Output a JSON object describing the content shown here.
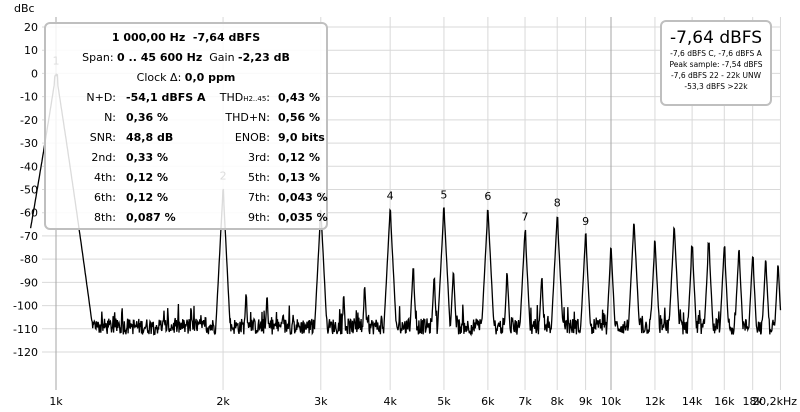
{
  "chart_data": {
    "type": "line",
    "title": "",
    "ylabel": "dBc",
    "xlabel": "",
    "x_scale": "log",
    "xlim_hz": [
      900,
      20200
    ],
    "ylim": [
      -130,
      25
    ],
    "y_ticks": [
      20,
      10,
      0,
      -10,
      -20,
      -30,
      -40,
      -50,
      -60,
      -70,
      -80,
      -90,
      -100,
      -110,
      -120
    ],
    "y_tick_labels": [
      "20",
      "10",
      "0",
      "-10",
      "-20",
      "-30",
      "-40",
      "-50",
      "-60",
      "-70",
      "-80",
      "-90",
      "-100",
      "-110",
      "-120"
    ],
    "x_ticks_hz": [
      1000,
      2000,
      3000,
      4000,
      5000,
      6000,
      7000,
      8000,
      9000,
      10000,
      12000,
      14000,
      16000,
      18000,
      20200
    ],
    "x_tick_labels": [
      "1k",
      "2k",
      "3k",
      "4k",
      "5k",
      "6k",
      "7k",
      "8k",
      "9k",
      "10k",
      "12k",
      "14k",
      "16k",
      "18k",
      "20,2kHz"
    ],
    "major_gridlines_hz": [
      1000,
      10000
    ],
    "grid": true,
    "noise_floor_dbc": -109,
    "harmonic_labels": [
      "1",
      "2",
      "3",
      "4",
      "5",
      "6",
      "7",
      "8",
      "9"
    ],
    "harmonics": [
      {
        "label": "1",
        "freq_hz": 1000,
        "dbc": 0
      },
      {
        "label": "2",
        "freq_hz": 2000,
        "dbc": -49.6
      },
      {
        "label": "3",
        "freq_hz": 3000,
        "dbc": -58.4
      },
      {
        "label": "4",
        "freq_hz": 4000,
        "dbc": -58.2
      },
      {
        "label": "5",
        "freq_hz": 5000,
        "dbc": -57.7
      },
      {
        "label": "6",
        "freq_hz": 6000,
        "dbc": -58.4
      },
      {
        "label": "7",
        "freq_hz": 7000,
        "dbc": -67.3
      },
      {
        "label": "8",
        "freq_hz": 8000,
        "dbc": -61.2
      },
      {
        "label": "9",
        "freq_hz": 9000,
        "dbc": -69.1
      }
    ],
    "spurs": [
      {
        "freq_hz": 1100,
        "dbc": -94
      },
      {
        "freq_hz": 2200,
        "dbc": -95
      },
      {
        "freq_hz": 2400,
        "dbc": -96
      },
      {
        "freq_hz": 3300,
        "dbc": -96
      },
      {
        "freq_hz": 3600,
        "dbc": -92
      },
      {
        "freq_hz": 4400,
        "dbc": -84
      },
      {
        "freq_hz": 4800,
        "dbc": -88
      },
      {
        "freq_hz": 5200,
        "dbc": -85
      },
      {
        "freq_hz": 6500,
        "dbc": -86
      },
      {
        "freq_hz": 7500,
        "dbc": -88
      },
      {
        "freq_hz": 10000,
        "dbc": -75
      },
      {
        "freq_hz": 11000,
        "dbc": -64
      },
      {
        "freq_hz": 12000,
        "dbc": -72
      },
      {
        "freq_hz": 13000,
        "dbc": -66
      },
      {
        "freq_hz": 14000,
        "dbc": -74
      },
      {
        "freq_hz": 15000,
        "dbc": -73
      },
      {
        "freq_hz": 16000,
        "dbc": -74
      },
      {
        "freq_hz": 17000,
        "dbc": -76
      },
      {
        "freq_hz": 18000,
        "dbc": -78
      },
      {
        "freq_hz": 19000,
        "dbc": -80
      },
      {
        "freq_hz": 20000,
        "dbc": -82
      }
    ],
    "line_color": "#000000",
    "grid_color": "#d9d9d9",
    "major_grid_color": "#a6a6a6"
  },
  "stats": {
    "frequency": "1 000,00 Hz",
    "level": "-7,64 dBFS",
    "span_label": "Span:",
    "span_value": "0 .. 45 600 Hz",
    "gain_label": "Gain",
    "gain_value": "-2,23 dB",
    "clock_label": "Clock Δ:",
    "clock_value": "0,0 ppm",
    "rows": [
      {
        "left_label": "N+D:",
        "left_value": "-54,1 dBFS A",
        "right_label": "THD",
        "right_sub": "H2..45",
        "right_value": "0,43 %"
      },
      {
        "left_label": "N:",
        "left_value": "0,36 %",
        "right_label": "THD+N:",
        "right_sub": "",
        "right_value": "0,56 %"
      },
      {
        "left_label": "SNR:",
        "left_value": "48,8 dB",
        "right_label": "ENOB:",
        "right_sub": "",
        "right_value": "9,0 bits"
      },
      {
        "left_label": "2nd:",
        "left_value": "0,33 %",
        "right_label": "3rd:",
        "right_sub": "",
        "right_value": "0,12 %"
      },
      {
        "left_label": "4th:",
        "left_value": "0,12 %",
        "right_label": "5th:",
        "right_sub": "",
        "right_value": "0,13 %"
      },
      {
        "left_label": "6th:",
        "left_value": "0,12 %",
        "right_label": "7th:",
        "right_sub": "",
        "right_value": "0,043 %"
      },
      {
        "left_label": "8th:",
        "left_value": "0,087 %",
        "right_label": "9th:",
        "right_sub": "",
        "right_value": "0,035 %"
      }
    ]
  },
  "level_panel": {
    "main": "-7,64 dBFS",
    "line1": "-7,6 dBFS C, -7,6 dBFS A",
    "line2": "Peak sample: -7,54 dBFS",
    "line3": "-7,6 dBFS 22 - 22k UNW",
    "line4": "-53,3 dBFS >22k"
  }
}
